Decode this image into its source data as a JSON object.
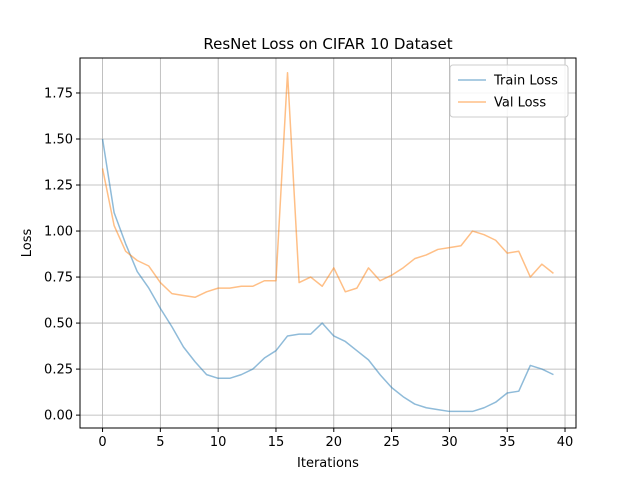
{
  "chart_data": {
    "type": "line",
    "title": "ResNet Loss on CIFAR 10 Dataset",
    "xlabel": "Iterations",
    "ylabel": "Loss",
    "xlim": [
      -1.95,
      40.95
    ],
    "ylim": [
      -0.07,
      1.94
    ],
    "xticks": [
      0,
      5,
      10,
      15,
      20,
      25,
      30,
      35,
      40
    ],
    "xtick_labels": [
      "0",
      "5",
      "10",
      "15",
      "20",
      "25",
      "30",
      "35",
      "40"
    ],
    "yticks": [
      0.0,
      0.25,
      0.5,
      0.75,
      1.0,
      1.25,
      1.5,
      1.75
    ],
    "ytick_labels": [
      "0.00",
      "0.25",
      "0.50",
      "0.75",
      "1.00",
      "1.25",
      "1.50",
      "1.75"
    ],
    "grid": true,
    "legend_position": "top-right",
    "x": [
      0,
      1,
      2,
      3,
      4,
      5,
      6,
      7,
      8,
      9,
      10,
      11,
      12,
      13,
      14,
      15,
      16,
      17,
      18,
      19,
      20,
      21,
      22,
      23,
      24,
      25,
      26,
      27,
      28,
      29,
      30,
      31,
      32,
      33,
      34,
      35,
      36,
      37,
      38,
      39
    ],
    "series": [
      {
        "name": "Train Loss",
        "color": "#1f77b4",
        "values": [
          1.5,
          1.1,
          0.93,
          0.78,
          0.69,
          0.58,
          0.48,
          0.37,
          0.29,
          0.22,
          0.2,
          0.2,
          0.22,
          0.25,
          0.31,
          0.35,
          0.43,
          0.44,
          0.44,
          0.5,
          0.43,
          0.4,
          0.35,
          0.3,
          0.22,
          0.15,
          0.1,
          0.06,
          0.04,
          0.03,
          0.02,
          0.02,
          0.02,
          0.04,
          0.07,
          0.12,
          0.13,
          0.27,
          0.25,
          0.22
        ]
      },
      {
        "name": "Val Loss",
        "color": "#ff7f0e",
        "values": [
          1.34,
          1.03,
          0.89,
          0.84,
          0.81,
          0.72,
          0.66,
          0.65,
          0.64,
          0.67,
          0.69,
          0.69,
          0.7,
          0.7,
          0.73,
          0.73,
          1.86,
          0.72,
          0.75,
          0.7,
          0.8,
          0.67,
          0.69,
          0.8,
          0.73,
          0.76,
          0.8,
          0.85,
          0.87,
          0.9,
          0.91,
          0.92,
          1.0,
          0.98,
          0.95,
          0.88,
          0.89,
          0.75,
          0.82,
          0.77
        ]
      }
    ]
  }
}
